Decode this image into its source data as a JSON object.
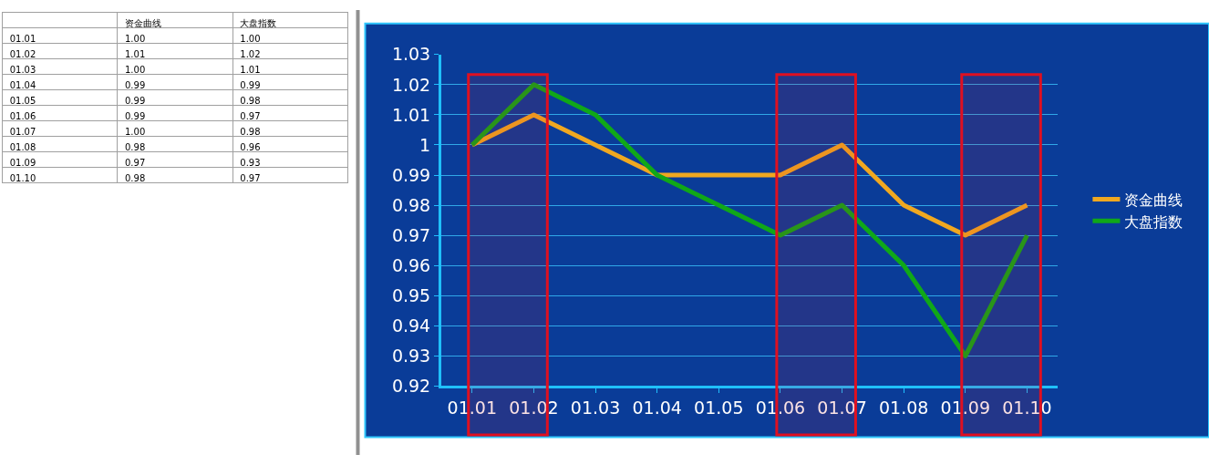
{
  "chart_data": [
    {
      "type": "heatmap",
      "categories": [
        "资金曲线",
        "大盘指数"
      ],
      "y_categories": [
        "01.01",
        "01.02",
        "01.03",
        "01.04",
        "01.05",
        "01.06",
        "01.07",
        "01.08",
        "01.09",
        "01.10"
      ],
      "cells": [
        [
          1.0,
          1.0
        ],
        [
          1.01,
          1.02
        ],
        [
          1.0,
          1.01
        ],
        [
          0.99,
          0.99
        ],
        [
          0.99,
          0.98
        ],
        [
          0.99,
          0.97
        ],
        [
          1.0,
          0.98
        ],
        [
          0.98,
          0.96
        ],
        [
          0.97,
          0.93
        ],
        [
          0.98,
          0.97
        ]
      ],
      "cell_labels": [
        [
          "1.00",
          "1.00"
        ],
        [
          "1.01",
          "1.02"
        ],
        [
          "1.00",
          "1.01"
        ],
        [
          "0.99",
          "0.99"
        ],
        [
          "0.99",
          "0.98"
        ],
        [
          "0.99",
          "0.97"
        ],
        [
          "1.00",
          "0.98"
        ],
        [
          "0.98",
          "0.96"
        ],
        [
          "0.97",
          "0.93"
        ],
        [
          "0.98",
          "0.97"
        ]
      ]
    },
    {
      "type": "line",
      "categories": [
        "01.01",
        "01.02",
        "01.03",
        "01.04",
        "01.05",
        "01.06",
        "01.07",
        "01.08",
        "01.09",
        "01.10"
      ],
      "series": [
        {
          "name": "资金曲线",
          "color": "#f0a820",
          "values": [
            1.0,
            1.01,
            1.0,
            0.99,
            0.99,
            0.99,
            1.0,
            0.98,
            0.97,
            0.98
          ]
        },
        {
          "name": "大盘指数",
          "color": "#10a818",
          "values": [
            1.0,
            1.02,
            1.01,
            0.99,
            0.98,
            0.97,
            0.98,
            0.96,
            0.93,
            0.97
          ]
        }
      ],
      "ylim": [
        0.92,
        1.03
      ],
      "yticks": [
        0.92,
        0.93,
        0.94,
        0.95,
        0.96,
        0.97,
        0.98,
        0.99,
        1,
        1.01,
        1.02,
        1.03
      ],
      "grid": "y",
      "legend": "right",
      "marker": "none",
      "line_style": "solid",
      "bands": [
        {
          "axis": "x",
          "from": "01.01",
          "to": "01.02",
          "color": "#e01020"
        },
        {
          "axis": "x",
          "from": "01.06",
          "to": "01.07",
          "color": "#e01020"
        },
        {
          "axis": "x",
          "from": "01.09",
          "to": "01.10",
          "color": "#e01020"
        }
      ]
    }
  ]
}
